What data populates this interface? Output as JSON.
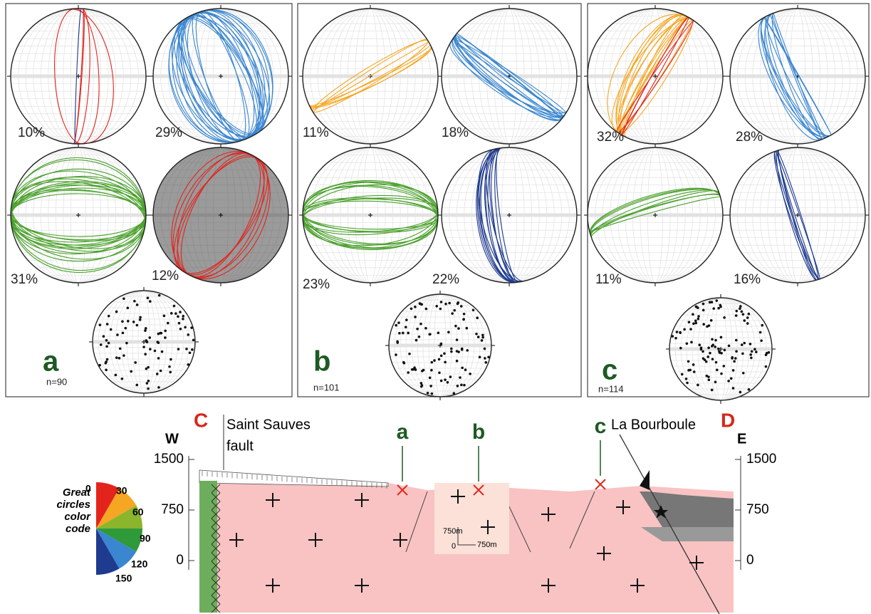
{
  "panels": [
    {
      "label": "a",
      "n": "n=90",
      "nets": [
        "10%",
        "29%",
        "31%",
        "12%"
      ]
    },
    {
      "label": "b",
      "n": "n=101",
      "nets": [
        "11%",
        "18%",
        "23%",
        "22%"
      ]
    },
    {
      "label": "c",
      "n": "n=114",
      "nets": [
        "32%",
        "28%",
        "11%",
        "16%"
      ]
    }
  ],
  "cross_section": {
    "left_point": "C",
    "right_point": "D",
    "west": "W",
    "east": "E",
    "fault_label": [
      "Saint Sauves",
      "fault"
    ],
    "town": "La Bourboule",
    "site_labels": [
      "a",
      "b",
      "c"
    ],
    "axis_left": [
      "1500",
      "750",
      "0"
    ],
    "axis_right": [
      "1500",
      "750",
      "0"
    ],
    "scale": {
      "vertical": "750m",
      "origin": "0",
      "horizontal": "750m"
    }
  },
  "legend": {
    "title": [
      "Great",
      "circles",
      "color",
      "code"
    ],
    "angles": [
      "0",
      "30",
      "60",
      "90",
      "120",
      "150"
    ]
  }
}
